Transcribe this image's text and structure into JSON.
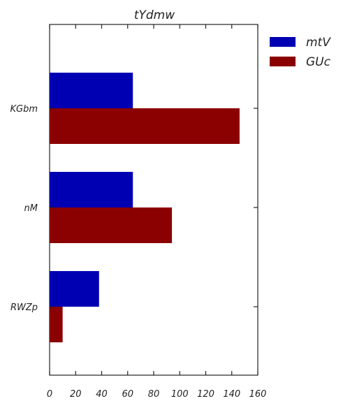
{
  "chart_data": {
    "type": "bar",
    "orientation": "horizontal",
    "title": "tYdmw",
    "categories": [
      "KGbm",
      "nM",
      "RWZp"
    ],
    "series": [
      {
        "name": "mtV",
        "color": "#0000b3",
        "values": [
          64,
          64,
          38
        ]
      },
      {
        "name": "GUc",
        "color": "#8b0000",
        "values": [
          146,
          94,
          10
        ]
      }
    ],
    "xlim": [
      0,
      160
    ],
    "xticks": [
      "0",
      "20",
      "40",
      "60",
      "80",
      "100",
      "120",
      "140",
      "160"
    ],
    "xlabel": "",
    "ylabel": "",
    "legend_position": "outside-top-right",
    "grid": false
  }
}
